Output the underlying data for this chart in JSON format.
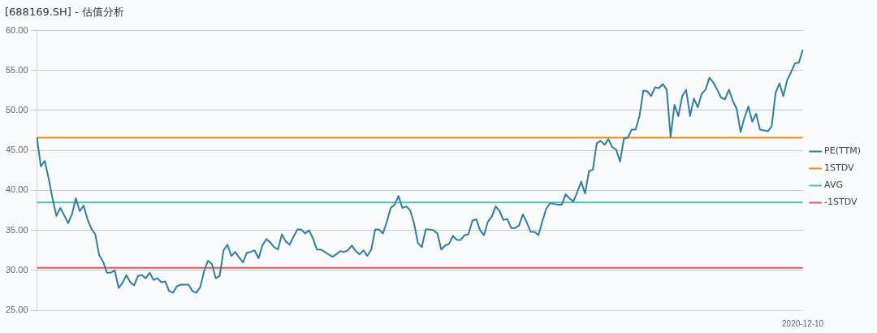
{
  "chart_data": {
    "type": "line",
    "title": "[688169.SH] - 估值分析",
    "categories": [
      null,
      null,
      null,
      null,
      null,
      null,
      null,
      null,
      null,
      null,
      null,
      null,
      null,
      null,
      null,
      null,
      null,
      null,
      null,
      null,
      null,
      null,
      null,
      null,
      null,
      null,
      null,
      null,
      null,
      null,
      null,
      null,
      null,
      null,
      null,
      null,
      null,
      null,
      null,
      null,
      null,
      null,
      null,
      null,
      null,
      null,
      null,
      null,
      null,
      null,
      null,
      null,
      null,
      null,
      null,
      null,
      null,
      null,
      null,
      null,
      null,
      null,
      null,
      null,
      null,
      null,
      null,
      null,
      null,
      null,
      null,
      null,
      null,
      null,
      null,
      null,
      null,
      null,
      null,
      null,
      null,
      null,
      null,
      null,
      null,
      null,
      null,
      null,
      null,
      null,
      null,
      null,
      null,
      null,
      null,
      null,
      null,
      null,
      null,
      null,
      null,
      null,
      null,
      null,
      null,
      null,
      null,
      null,
      null,
      null,
      null,
      null,
      null,
      null,
      null,
      null,
      null,
      null,
      null,
      null,
      null,
      null,
      null,
      null,
      null,
      null,
      null,
      null,
      null,
      null,
      null,
      null,
      null,
      null,
      null,
      null,
      null,
      null,
      null,
      null,
      null,
      null,
      null,
      null,
      null,
      null,
      null,
      null,
      null,
      null,
      null,
      null,
      null,
      null,
      null,
      null,
      null,
      null,
      null,
      null,
      null,
      null,
      null,
      null,
      null,
      null,
      null,
      null,
      null,
      null,
      null,
      null,
      null,
      null,
      null,
      null,
      null,
      null,
      null,
      null,
      null,
      null,
      null,
      null,
      null,
      null,
      null,
      null,
      null,
      null,
      null,
      null,
      null,
      null,
      null,
      null,
      null,
      "2020-12-10"
    ],
    "series": [
      {
        "name": "PE(TTM)",
        "color": "#2e7ea6",
        "values": [
          46.6,
          43.0,
          43.7,
          41.5,
          39.0,
          36.8,
          37.8,
          36.9,
          35.9,
          37.0,
          39.0,
          37.4,
          38.1,
          36.4,
          35.2,
          34.5,
          31.9,
          31.1,
          29.7,
          29.7,
          30.0,
          27.8,
          28.4,
          29.4,
          28.5,
          28.1,
          29.3,
          29.4,
          29.0,
          29.7,
          28.8,
          29.0,
          28.5,
          28.6,
          27.4,
          27.2,
          28.0,
          28.2,
          28.2,
          28.2,
          27.4,
          27.2,
          27.9,
          29.9,
          31.2,
          30.8,
          29.0,
          29.3,
          32.5,
          33.2,
          31.8,
          32.3,
          31.6,
          31.0,
          32.2,
          32.3,
          32.5,
          31.5,
          33.1,
          33.9,
          33.5,
          32.9,
          32.6,
          34.5,
          33.6,
          33.2,
          34.2,
          35.1,
          35.1,
          34.6,
          35.0,
          34.0,
          32.6,
          32.6,
          32.3,
          32.0,
          31.7,
          32.0,
          32.4,
          32.3,
          32.5,
          33.1,
          32.4,
          32.0,
          32.5,
          31.8,
          32.6,
          35.1,
          35.1,
          34.6,
          36.1,
          37.8,
          38.2,
          39.3,
          37.8,
          38.0,
          37.5,
          35.9,
          33.4,
          32.9,
          35.1,
          35.1,
          35.0,
          34.6,
          32.6,
          33.1,
          33.3,
          34.3,
          33.8,
          33.8,
          34.4,
          34.5,
          36.2,
          36.4,
          35.0,
          34.4,
          36.1,
          36.7,
          38.0,
          37.4,
          36.3,
          36.4,
          35.3,
          35.3,
          35.6,
          37.0,
          36.0,
          34.8,
          34.8,
          34.4,
          36.1,
          37.7,
          38.4,
          38.3,
          38.2,
          38.2,
          39.5,
          39.0,
          38.6,
          39.8,
          41.1,
          39.6,
          42.4,
          42.6,
          45.9,
          46.2,
          45.7,
          46.4,
          45.4,
          45.1,
          43.6,
          46.5,
          46.6,
          47.6,
          47.6,
          49.3,
          52.5,
          52.4,
          51.8,
          52.9,
          52.8,
          53.3,
          52.6,
          46.7,
          50.7,
          49.3,
          51.8,
          52.6,
          49.3,
          51.5,
          50.4,
          52.1,
          52.6,
          54.1,
          53.5,
          52.6,
          51.6,
          51.4,
          52.6,
          51.2,
          50.2,
          47.3,
          49.1,
          50.5,
          48.6,
          49.6,
          47.6,
          47.5,
          47.4,
          48.0,
          52.2,
          53.4,
          51.8,
          53.8,
          54.8,
          55.9,
          56.0,
          57.6
        ]
      }
    ],
    "ref_lines": [
      {
        "axis": "y",
        "value": 46.6,
        "label": "1STDV",
        "color": "#f28a21"
      },
      {
        "axis": "y",
        "value": 38.5,
        "label": "AVG",
        "color": "#4fc1bd"
      },
      {
        "axis": "y",
        "value": 30.3,
        "label": "-1STDV",
        "color": "#e8585a"
      }
    ],
    "ylim": [
      25,
      60
    ],
    "yticks": [
      {
        "value": 25,
        "label": "25.00"
      },
      {
        "value": 30,
        "label": "30.00"
      },
      {
        "value": 35,
        "label": "35.00"
      },
      {
        "value": 40,
        "label": "40.00"
      },
      {
        "value": 45,
        "label": "45.00"
      },
      {
        "value": 50,
        "label": "50.00"
      },
      {
        "value": 55,
        "label": "55.00"
      },
      {
        "value": 60,
        "label": "60.00"
      }
    ],
    "grid": "y",
    "legend": "right",
    "marker": "none",
    "line_style": "solid"
  }
}
